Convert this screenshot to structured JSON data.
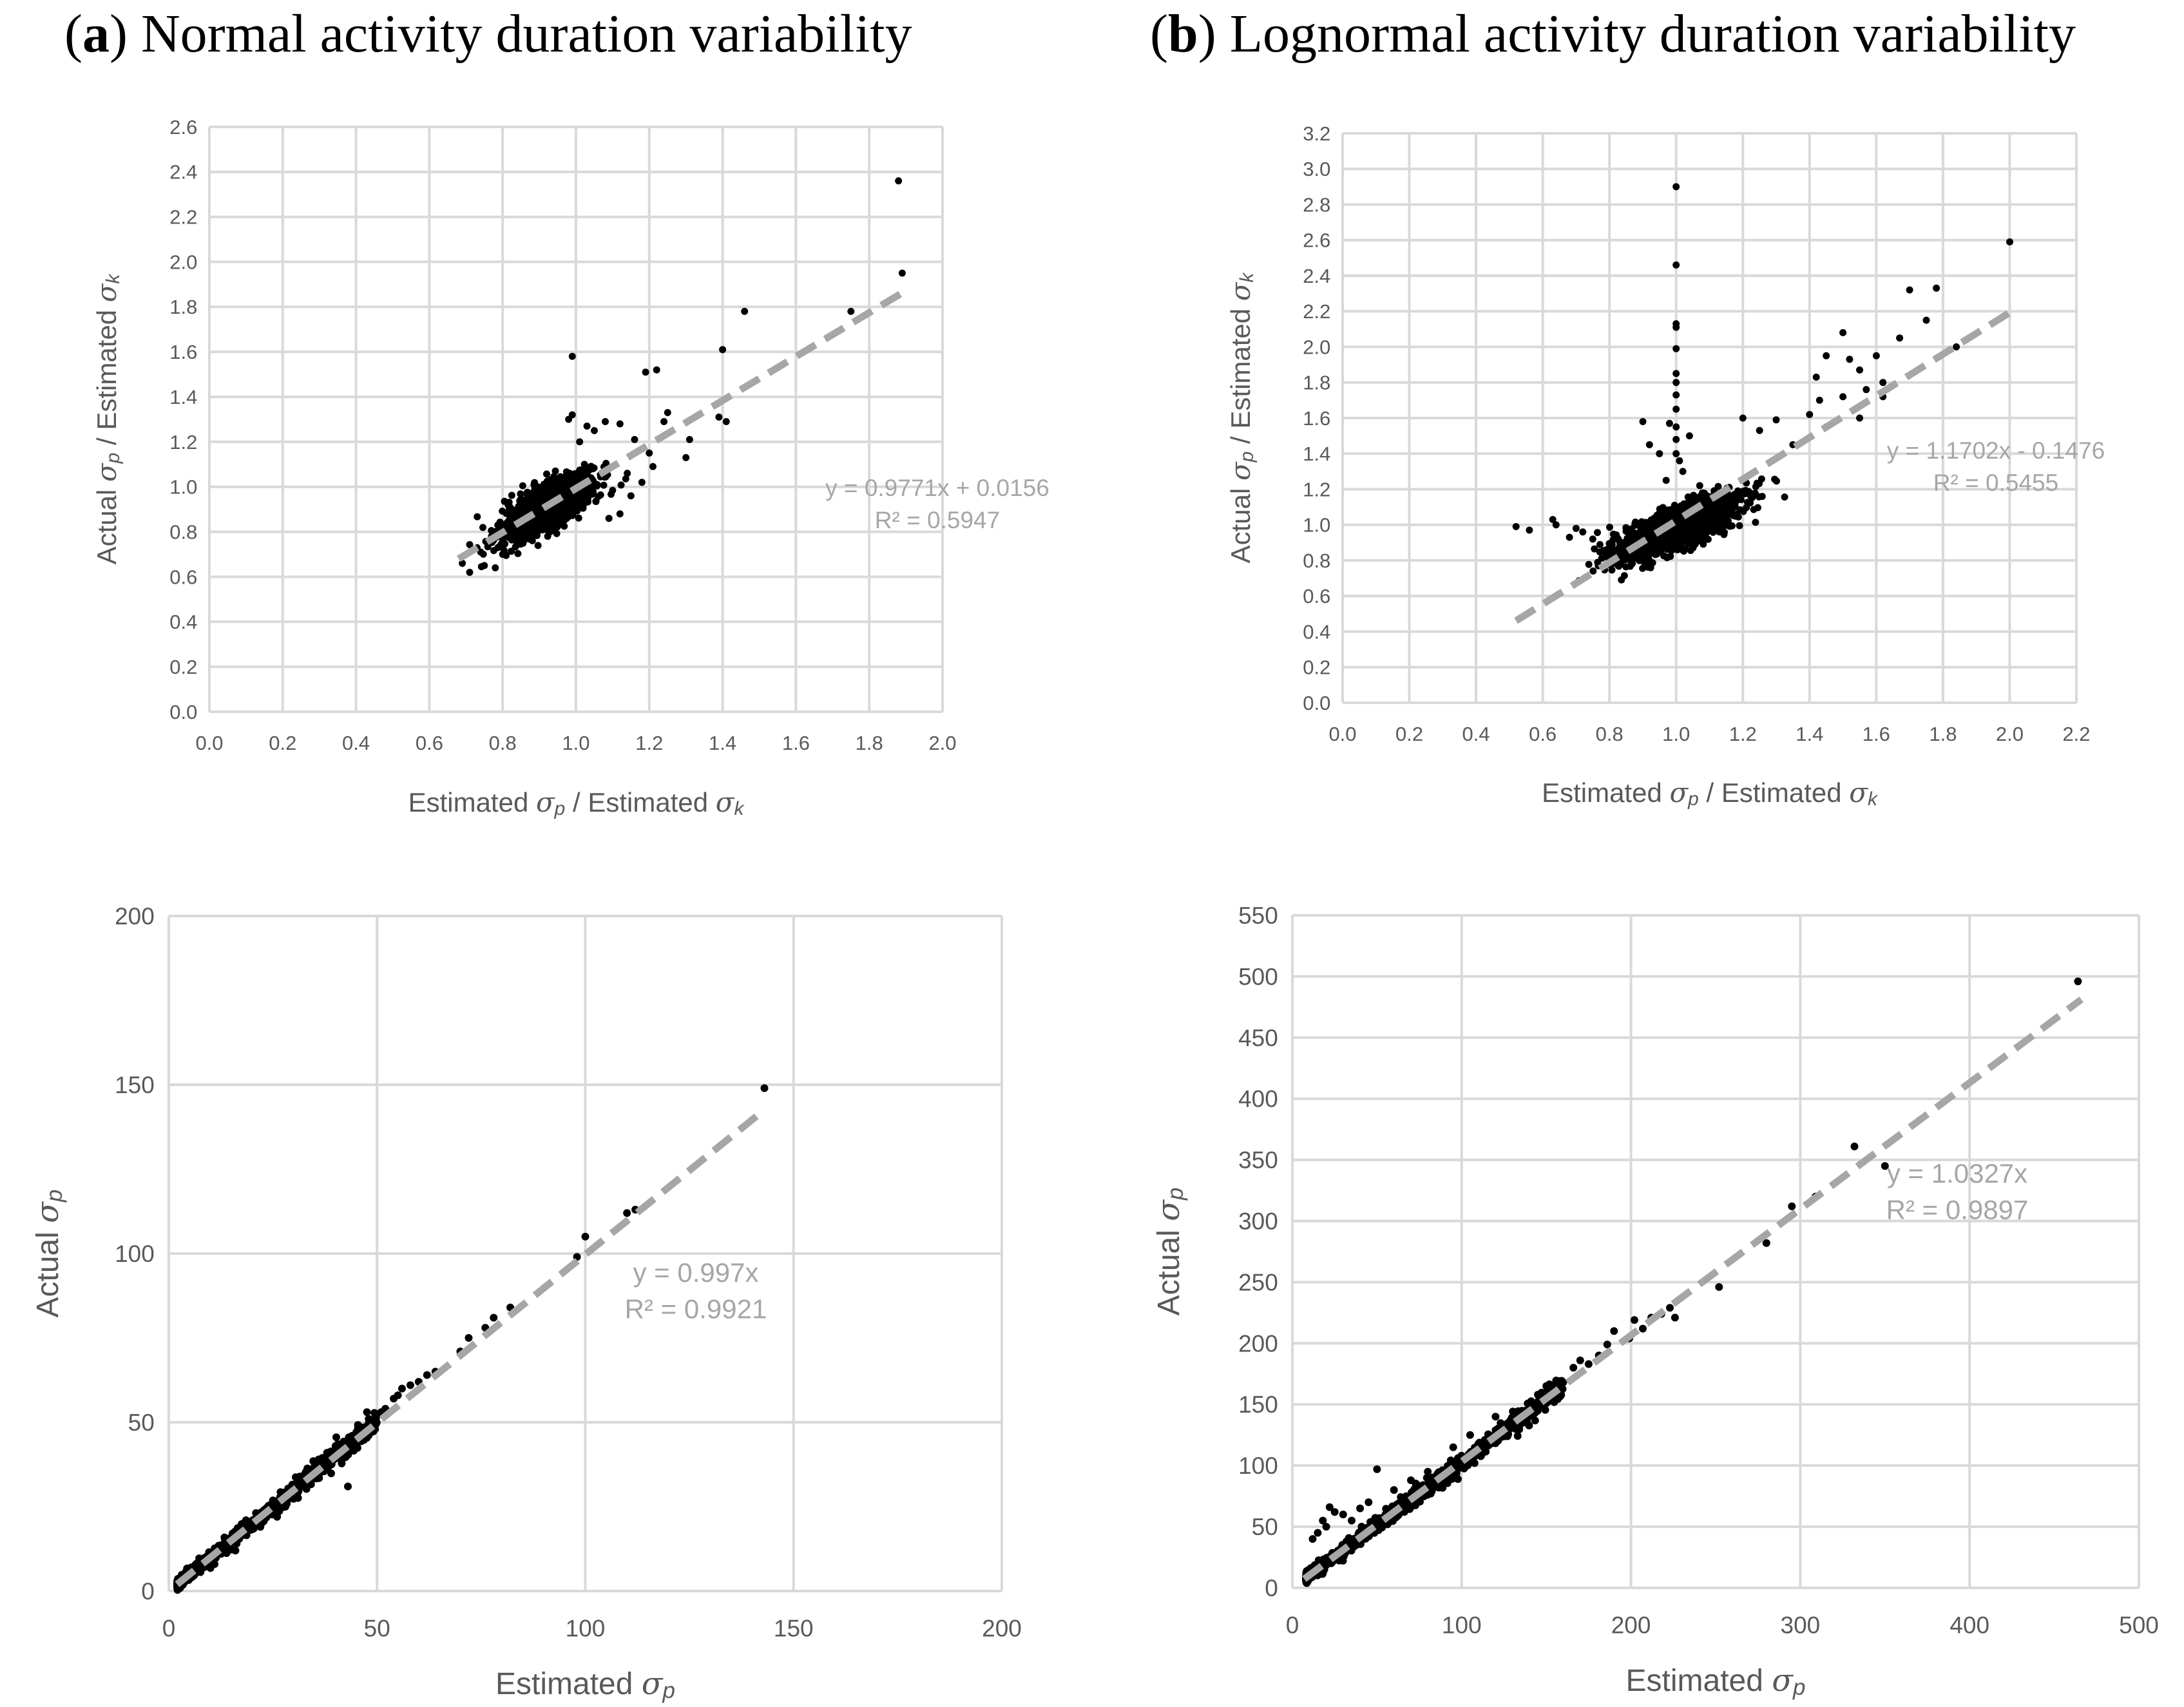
{
  "figure": {
    "panel_a_letter": "a",
    "panel_a_title": "Normal activity duration variability",
    "panel_b_letter": "b",
    "panel_b_title": "Lognormal activity duration variability",
    "colors": {
      "points": "#000000",
      "trendline": "#a6a6a6",
      "grid": "#d9d9d9",
      "text": "#595959"
    }
  },
  "chart_data": [
    {
      "id": "a-ratio",
      "type": "scatter",
      "panel": "a",
      "title": "",
      "xlabel": "Estimated σp / Estimated σk",
      "ylabel": "Actual σp / Estimated σk",
      "xlim": [
        0,
        2.0
      ],
      "ylim": [
        0,
        2.6
      ],
      "xticks": [
        0,
        0.2,
        0.4,
        0.6,
        0.8,
        1.0,
        1.2,
        1.4,
        1.6,
        1.8,
        2.0
      ],
      "yticks": [
        0,
        0.2,
        0.4,
        0.6,
        0.8,
        1.0,
        1.2,
        1.4,
        1.6,
        1.8,
        2.0,
        2.2,
        2.4,
        2.6
      ],
      "tick_decimals": 1,
      "trendline": {
        "slope": 0.9771,
        "intercept": 0.0156,
        "x_range": [
          0.68,
          1.89
        ]
      },
      "equation": "y = 0.9771x + 0.0156",
      "r_squared": "R² = 0.5947",
      "cloud": {
        "center": [
          0.92,
          0.91
        ],
        "spread": [
          0.06,
          0.07
        ],
        "correlation": 0.75,
        "count": 1600
      },
      "outliers": [
        [
          1.88,
          2.36
        ],
        [
          1.89,
          1.95
        ],
        [
          1.75,
          1.78
        ],
        [
          1.46,
          1.78
        ],
        [
          1.4,
          1.61
        ],
        [
          1.41,
          1.29
        ],
        [
          1.39,
          1.31
        ],
        [
          1.22,
          1.52
        ],
        [
          1.19,
          1.51
        ],
        [
          1.25,
          1.33
        ],
        [
          1.24,
          1.29
        ],
        [
          1.31,
          1.21
        ],
        [
          0.99,
          1.58
        ],
        [
          1.12,
          1.28
        ],
        [
          1.08,
          1.29
        ],
        [
          1.05,
          1.25
        ],
        [
          1.2,
          1.15
        ],
        [
          1.18,
          1.02
        ],
        [
          1.12,
          0.88
        ],
        [
          1.16,
          1.21
        ],
        [
          1.3,
          1.13
        ],
        [
          1.15,
          0.96
        ],
        [
          1.03,
          1.27
        ],
        [
          1.09,
          0.86
        ],
        [
          0.98,
          1.3
        ],
        [
          0.99,
          1.32
        ],
        [
          1.01,
          1.2
        ],
        [
          1.14,
          1.06
        ],
        [
          1.21,
          1.09
        ],
        [
          0.74,
          0.71
        ],
        [
          0.71,
          0.62
        ],
        [
          0.75,
          0.65
        ],
        [
          0.78,
          0.64
        ],
        [
          0.8,
          0.7
        ],
        [
          0.69,
          0.66
        ]
      ]
    },
    {
      "id": "b-ratio",
      "type": "scatter",
      "panel": "b",
      "title": "",
      "xlabel": "Estimated σp / Estimated σk",
      "ylabel": "Actual σp / Estimated σk",
      "xlim": [
        0,
        2.2
      ],
      "ylim": [
        0,
        3.2
      ],
      "xticks": [
        0,
        0.2,
        0.4,
        0.6,
        0.8,
        1.0,
        1.2,
        1.4,
        1.6,
        1.8,
        2.0,
        2.2
      ],
      "yticks": [
        0,
        0.2,
        0.4,
        0.6,
        0.8,
        1.0,
        1.2,
        1.4,
        1.6,
        1.8,
        2.0,
        2.2,
        2.4,
        2.6,
        2.8,
        3.0,
        3.2
      ],
      "tick_decimals": 1,
      "trendline": {
        "slope": 1.1702,
        "intercept": -0.1476,
        "x_range": [
          0.52,
          2.01
        ]
      },
      "equation": "y = 1.1702x - 0.1476",
      "r_squared": "R² = 0.5455",
      "cloud": {
        "center": [
          1.0,
          0.98
        ],
        "spread": [
          0.09,
          0.09
        ],
        "correlation": 0.78,
        "count": 1700
      },
      "outliers": [
        [
          2.0,
          2.59
        ],
        [
          1.78,
          2.33
        ],
        [
          1.7,
          2.32
        ],
        [
          1.75,
          2.15
        ],
        [
          1.67,
          2.05
        ],
        [
          1.84,
          2.0
        ],
        [
          1.5,
          2.08
        ],
        [
          1.52,
          1.93
        ],
        [
          1.6,
          1.95
        ],
        [
          1.55,
          1.87
        ],
        [
          1.45,
          1.95
        ],
        [
          1.42,
          1.83
        ],
        [
          1.57,
          1.76
        ],
        [
          1.62,
          1.8
        ],
        [
          1.5,
          1.72
        ],
        [
          1.4,
          1.62
        ],
        [
          1.43,
          1.7
        ],
        [
          1.3,
          1.59
        ],
        [
          1.25,
          1.53
        ],
        [
          1.2,
          1.6
        ],
        [
          1.55,
          1.6
        ],
        [
          1.62,
          1.72
        ],
        [
          1.45,
          1.55
        ],
        [
          1.35,
          1.45
        ],
        [
          1.0,
          2.9
        ],
        [
          1.0,
          2.46
        ],
        [
          1.0,
          2.13
        ],
        [
          1.0,
          2.11
        ],
        [
          1.0,
          1.99
        ],
        [
          1.0,
          1.85
        ],
        [
          1.0,
          1.8
        ],
        [
          1.0,
          1.73
        ],
        [
          1.0,
          1.65
        ],
        [
          1.0,
          1.55
        ],
        [
          1.0,
          1.48
        ],
        [
          1.0,
          1.4
        ],
        [
          1.01,
          1.36
        ],
        [
          0.98,
          1.57
        ],
        [
          0.95,
          1.4
        ],
        [
          0.92,
          1.45
        ],
        [
          0.9,
          1.58
        ],
        [
          1.02,
          1.3
        ],
        [
          0.97,
          1.25
        ],
        [
          1.04,
          1.5
        ],
        [
          0.52,
          0.99
        ],
        [
          0.56,
          0.97
        ],
        [
          0.63,
          1.03
        ],
        [
          0.64,
          1.0
        ],
        [
          0.68,
          0.93
        ],
        [
          0.7,
          0.98
        ],
        [
          0.72,
          0.96
        ],
        [
          0.75,
          0.92
        ]
      ]
    },
    {
      "id": "a-sigma",
      "type": "scatter",
      "panel": "a",
      "title": "",
      "xlabel": "Estimated σp",
      "ylabel": "Actual σp",
      "xlim": [
        0,
        200
      ],
      "ylim": [
        0,
        200
      ],
      "xticks": [
        0,
        50,
        100,
        150,
        200
      ],
      "yticks": [
        0,
        50,
        100,
        150,
        200
      ],
      "tick_decimals": 0,
      "trendline": {
        "slope": 0.997,
        "intercept": 0,
        "x_range": [
          2,
          143
        ]
      },
      "equation": "y = 0.997x",
      "r_squared": "R² = 0.9921",
      "band": {
        "x_range": [
          2,
          50
        ],
        "slope": 1.0,
        "spread": 1.1,
        "count": 900
      },
      "outliers": [
        [
          143,
          149
        ],
        [
          112,
          113
        ],
        [
          110,
          112
        ],
        [
          100,
          105
        ],
        [
          98,
          99
        ],
        [
          82,
          84
        ],
        [
          78,
          81
        ],
        [
          76,
          78
        ],
        [
          72,
          75
        ],
        [
          70,
          71
        ],
        [
          64,
          65
        ],
        [
          62,
          64
        ],
        [
          60,
          62
        ],
        [
          58,
          61
        ],
        [
          56,
          60
        ],
        [
          55,
          58
        ],
        [
          54,
          57
        ],
        [
          52,
          54
        ],
        [
          51,
          53
        ],
        [
          50,
          52
        ],
        [
          48,
          51
        ],
        [
          46,
          48
        ],
        [
          45,
          47
        ],
        [
          44,
          46
        ],
        [
          43,
          31
        ],
        [
          40,
          42
        ],
        [
          38,
          41
        ],
        [
          36,
          39
        ],
        [
          35,
          37
        ],
        [
          28,
          25
        ],
        [
          26,
          22
        ],
        [
          22,
          19
        ],
        [
          16,
          12
        ],
        [
          11,
          8
        ]
      ]
    },
    {
      "id": "b-sigma",
      "type": "scatter",
      "panel": "b",
      "title": "",
      "xlabel": "Estimated σp",
      "ylabel": "Actual σp",
      "xlim": [
        0,
        500
      ],
      "ylim": [
        0,
        550
      ],
      "xticks": [
        0,
        100,
        200,
        300,
        400,
        500
      ],
      "yticks": [
        0,
        50,
        100,
        150,
        200,
        250,
        300,
        350,
        400,
        450,
        500,
        550
      ],
      "tick_decimals": 0,
      "trendline": {
        "slope": 1.0327,
        "intercept": 0,
        "x_range": [
          7,
          466
        ]
      },
      "equation": "y = 1.0327x",
      "r_squared": "R² = 0.9897",
      "band": {
        "x_range": [
          8,
          160
        ],
        "slope": 1.03,
        "spread": 3.2,
        "count": 1100
      },
      "outliers": [
        [
          464,
          496
        ],
        [
          350,
          345
        ],
        [
          332,
          361
        ],
        [
          309,
          320
        ],
        [
          295,
          312
        ],
        [
          280,
          282
        ],
        [
          252,
          246
        ],
        [
          226,
          221
        ],
        [
          223,
          229
        ],
        [
          218,
          224
        ],
        [
          212,
          221
        ],
        [
          207,
          212
        ],
        [
          202,
          219
        ],
        [
          199,
          204
        ],
        [
          190,
          210
        ],
        [
          186,
          199
        ],
        [
          181,
          190
        ],
        [
          175,
          183
        ],
        [
          170,
          186
        ],
        [
          166,
          180
        ],
        [
          160,
          168
        ],
        [
          155,
          163
        ],
        [
          150,
          165
        ],
        [
          145,
          158
        ],
        [
          140,
          150
        ],
        [
          135,
          142
        ],
        [
          50,
          97
        ],
        [
          22,
          66
        ],
        [
          25,
          62
        ],
        [
          18,
          55
        ],
        [
          30,
          60
        ],
        [
          40,
          65
        ],
        [
          15,
          45
        ],
        [
          12,
          40
        ],
        [
          20,
          50
        ],
        [
          35,
          55
        ],
        [
          45,
          70
        ],
        [
          60,
          80
        ],
        [
          70,
          88
        ],
        [
          80,
          95
        ],
        [
          95,
          115
        ],
        [
          105,
          125
        ],
        [
          120,
          140
        ]
      ]
    }
  ]
}
